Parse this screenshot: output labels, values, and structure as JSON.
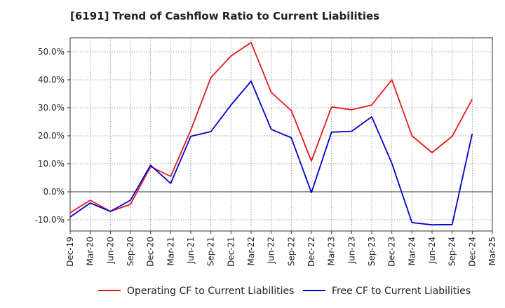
{
  "chart_data": {
    "type": "line",
    "title": "[6191]  Trend of Cashflow Ratio to Current Liabilities",
    "xlabel": "",
    "ylabel": "",
    "x_tick_labels": [
      "Dec-19",
      "Mar-20",
      "Jun-20",
      "Sep-20",
      "Dec-20",
      "Mar-21",
      "Jun-21",
      "Sep-21",
      "Dec-21",
      "Mar-22",
      "Jun-22",
      "Sep-22",
      "Dec-22",
      "Mar-23",
      "Jun-23",
      "Sep-23",
      "Dec-23",
      "Mar-24",
      "Jun-24",
      "Sep-24",
      "Dec-24",
      "Mar-25"
    ],
    "y_tick_labels": [
      "50.0%",
      "40.0%",
      "30.0%",
      "20.0%",
      "10.0%",
      "0.0%",
      "-10.0%"
    ],
    "y_tick_values": [
      50,
      40,
      30,
      20,
      10,
      0,
      -10
    ],
    "ylim": [
      -14,
      55
    ],
    "grid": true,
    "legend_position": "bottom",
    "series": [
      {
        "name": "Operating CF to Current Liabilities",
        "color": "#e31a1c",
        "values": [
          -7.5,
          -3,
          -7,
          -4.5,
          9,
          5.5,
          22,
          40.8,
          48.5,
          53.3,
          35.5,
          29,
          11,
          30.3,
          29.3,
          31,
          40,
          20,
          14,
          19.8,
          33.1,
          null
        ]
      },
      {
        "name": "Free CF to Current Liabilities",
        "color": "#0000cc",
        "values": [
          -9,
          -4,
          -7,
          -3,
          9.5,
          3,
          19.8,
          21.5,
          31,
          39.5,
          22.3,
          19.3,
          -0.3,
          21.3,
          21.6,
          26.8,
          10.2,
          -11,
          -11.8,
          -11.7,
          20.8,
          null
        ]
      }
    ]
  }
}
